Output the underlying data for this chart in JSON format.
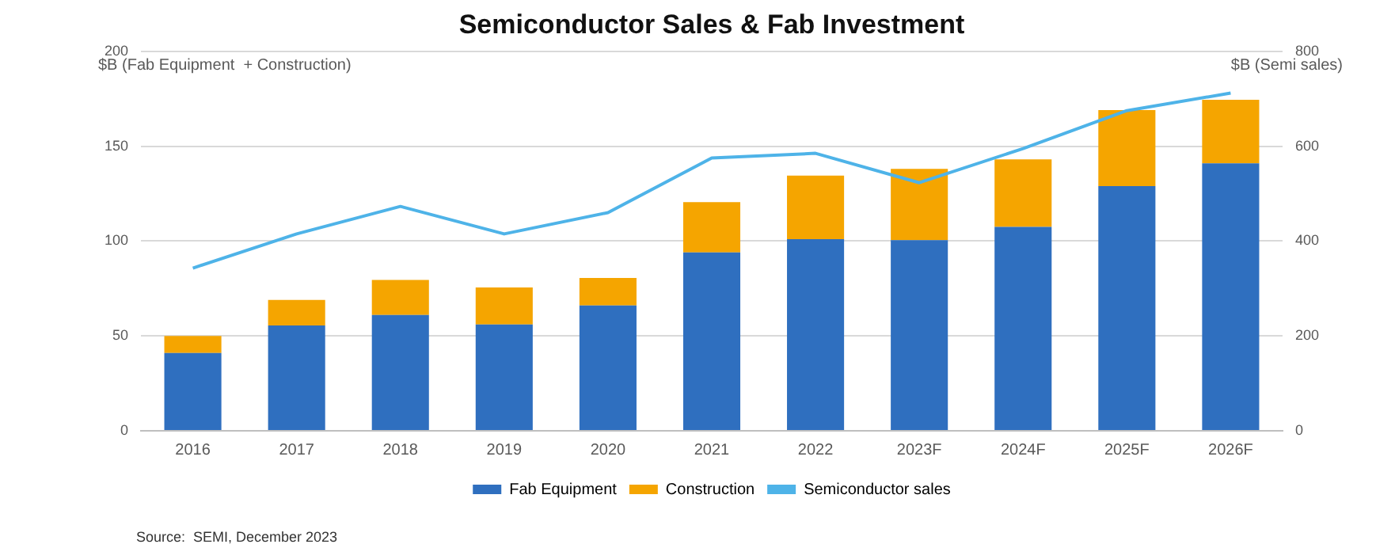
{
  "chart_data": {
    "type": "bar",
    "title": "Semiconductor Sales & Fab Investment",
    "ylabel": "$B (Fab Equipment  + Construction)",
    "y2label": "$B (Semi sales)",
    "categories": [
      "2016",
      "2017",
      "2018",
      "2019",
      "2020",
      "2021",
      "2022",
      "2023F",
      "2024F",
      "2025F",
      "2026F"
    ],
    "stacked": true,
    "series": [
      {
        "name": "Fab Equipment",
        "color": "#2f6fbf",
        "values": [
          41,
          55.5,
          61,
          56,
          66,
          94,
          101,
          100.5,
          107.5,
          129,
          141
        ]
      },
      {
        "name": "Construction",
        "color": "#f5a500",
        "values": [
          9,
          13.5,
          18.5,
          19.5,
          14.5,
          26.5,
          33.5,
          37.5,
          35.5,
          40,
          33.5
        ]
      },
      {
        "name": "Semiconductor sales",
        "type": "line",
        "axis": "y2",
        "color": "#4eb3e8",
        "values": [
          343,
          415,
          473,
          415,
          460,
          575,
          585,
          523,
          595,
          675,
          712
        ]
      }
    ],
    "ylim": [
      0,
      200
    ],
    "yticks": [
      0,
      50,
      100,
      150,
      200
    ],
    "y2lim": [
      0,
      800
    ],
    "y2ticks": [
      0,
      200,
      400,
      600,
      800
    ],
    "grid": "y",
    "legend": "bottom",
    "marker": "none",
    "annotations": [
      "Source:  SEMI, December 2023"
    ]
  }
}
